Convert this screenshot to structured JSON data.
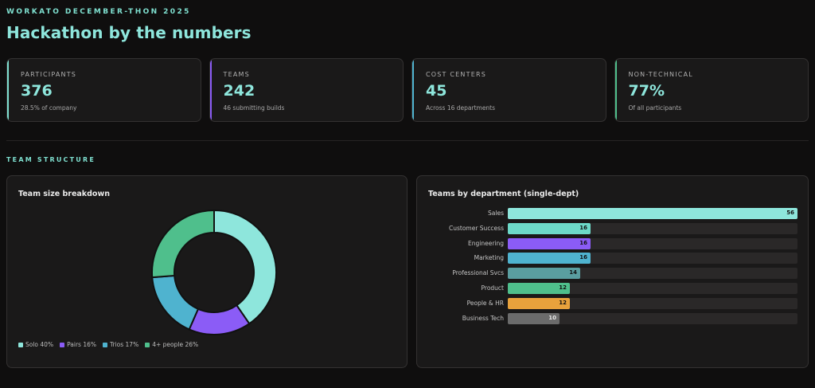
{
  "header": {
    "eyebrow": "WORKATO DECEMBER-THON 2025",
    "title": "Hackathon by the numbers"
  },
  "stats": [
    {
      "label": "PARTICIPANTS",
      "value": "376",
      "sub": "28.5% of company",
      "color": "#7fe0d0"
    },
    {
      "label": "TEAMS",
      "value": "242",
      "sub": "46 submitting builds",
      "color": "#8b5cf6"
    },
    {
      "label": "COST CENTERS",
      "value": "45",
      "sub": "Across 16 departments",
      "color": "#4fb3cf"
    },
    {
      "label": "NON-TECHNICAL",
      "value": "77%",
      "sub": "Of all participants",
      "color": "#4fbf8c"
    }
  ],
  "section": {
    "label": "TEAM STRUCTURE"
  },
  "left_panel": {
    "title": "Team size breakdown"
  },
  "right_panel": {
    "title": "Teams by department (single-dept)"
  },
  "chart_data": [
    {
      "type": "pie",
      "title": "Team size breakdown",
      "categories": [
        "Solo",
        "Pairs",
        "Trios",
        "4+ people"
      ],
      "values": [
        40,
        16,
        17,
        26
      ],
      "legend": [
        "Solo 40%",
        "Pairs 16%",
        "Trios 17%",
        "4+ people 26%"
      ],
      "colors": [
        "#8ee6dc",
        "#8b5cf6",
        "#4fb3cf",
        "#4fbf8c"
      ],
      "legend_position": "bottom-left"
    },
    {
      "type": "bar",
      "orientation": "horizontal",
      "title": "Teams by department (single-dept)",
      "categories": [
        "Sales",
        "Customer Success",
        "Engineering",
        "Marketing",
        "Professional Svcs",
        "Product",
        "People & HR",
        "Business Tech"
      ],
      "values": [
        56,
        16,
        16,
        16,
        14,
        12,
        12,
        10
      ],
      "colors": [
        "#8ee6dc",
        "#6dd9c8",
        "#8b5cf6",
        "#4fb3cf",
        "#5a9ea0",
        "#4fbf8c",
        "#e8a23c",
        "#6b6b6b"
      ],
      "xlim": [
        0,
        56
      ]
    }
  ]
}
